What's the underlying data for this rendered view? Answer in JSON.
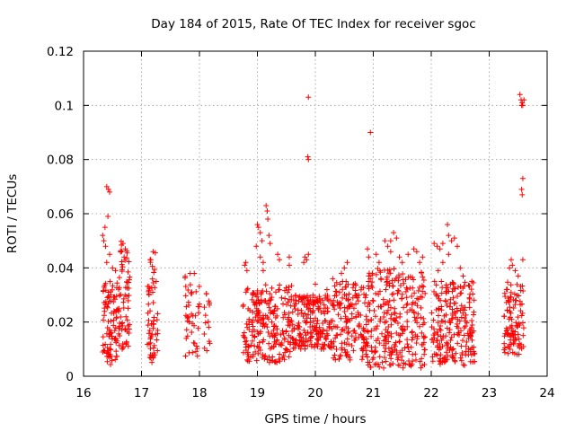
{
  "chart_data": {
    "type": "scatter",
    "title": "Day 184 of 2015, Rate Of TEC Index for receiver sgoc",
    "xlabel": "GPS time / hours",
    "ylabel": "ROTI / TECUs",
    "xlim": [
      16,
      24
    ],
    "ylim": [
      0,
      0.12
    ],
    "x_ticks": [
      "16",
      "17",
      "18",
      "19",
      "20",
      "21",
      "22",
      "23",
      "24"
    ],
    "y_ticks": [
      "0",
      "0.02",
      "0.04",
      "0.06",
      "0.08",
      "0.1",
      "0.12"
    ],
    "grid": true,
    "marker": "+",
    "color": "#ff0000",
    "series": [
      {
        "name": "ROTI",
        "clusters": [
          {
            "x_range": [
              16.33,
              16.58
            ],
            "y_range": [
              0.004,
              0.035
            ],
            "count": 90
          },
          {
            "x_range": [
              16.6,
              16.8
            ],
            "y_range": [
              0.01,
              0.05
            ],
            "count": 70
          },
          {
            "x_range": [
              17.1,
              17.28
            ],
            "y_range": [
              0.005,
              0.046
            ],
            "count": 60
          },
          {
            "x_range": [
              17.75,
              18.0
            ],
            "y_range": [
              0.007,
              0.038
            ],
            "count": 45
          },
          {
            "x_range": [
              18.05,
              18.18
            ],
            "y_range": [
              0.008,
              0.033
            ],
            "count": 15
          },
          {
            "x_range": [
              18.75,
              19.6
            ],
            "y_range": [
              0.005,
              0.034
            ],
            "count": 230
          },
          {
            "x_range": [
              19.6,
              20.3
            ],
            "y_range": [
              0.01,
              0.03
            ],
            "count": 210
          },
          {
            "x_range": [
              20.3,
              20.9
            ],
            "y_range": [
              0.006,
              0.035
            ],
            "count": 160
          },
          {
            "x_range": [
              20.9,
              21.9
            ],
            "y_range": [
              0.003,
              0.04
            ],
            "count": 280
          },
          {
            "x_range": [
              22.0,
              22.75
            ],
            "y_range": [
              0.004,
              0.035
            ],
            "count": 220
          },
          {
            "x_range": [
              23.25,
              23.6
            ],
            "y_range": [
              0.008,
              0.035
            ],
            "count": 100
          }
        ],
        "points": [
          {
            "x": 16.4,
            "y": 0.07
          },
          {
            "x": 16.43,
            "y": 0.069
          },
          {
            "x": 16.45,
            "y": 0.068
          },
          {
            "x": 16.42,
            "y": 0.059
          },
          {
            "x": 16.35,
            "y": 0.05
          },
          {
            "x": 16.38,
            "y": 0.048
          },
          {
            "x": 16.4,
            "y": 0.042
          },
          {
            "x": 16.5,
            "y": 0.04
          },
          {
            "x": 16.55,
            "y": 0.039
          },
          {
            "x": 16.37,
            "y": 0.055
          },
          {
            "x": 16.45,
            "y": 0.045
          },
          {
            "x": 16.33,
            "y": 0.052
          },
          {
            "x": 16.68,
            "y": 0.049
          },
          {
            "x": 16.72,
            "y": 0.047
          },
          {
            "x": 16.7,
            "y": 0.044
          },
          {
            "x": 17.2,
            "y": 0.046
          },
          {
            "x": 17.15,
            "y": 0.043
          },
          {
            "x": 18.8,
            "y": 0.042
          },
          {
            "x": 18.82,
            "y": 0.039
          },
          {
            "x": 18.78,
            "y": 0.041
          },
          {
            "x": 19.0,
            "y": 0.056
          },
          {
            "x": 19.02,
            "y": 0.055
          },
          {
            "x": 19.05,
            "y": 0.053
          },
          {
            "x": 19.08,
            "y": 0.05
          },
          {
            "x": 18.98,
            "y": 0.048
          },
          {
            "x": 19.05,
            "y": 0.044
          },
          {
            "x": 19.1,
            "y": 0.042
          },
          {
            "x": 19.15,
            "y": 0.063
          },
          {
            "x": 19.17,
            "y": 0.061
          },
          {
            "x": 19.18,
            "y": 0.058
          },
          {
            "x": 19.2,
            "y": 0.052
          },
          {
            "x": 19.22,
            "y": 0.049
          },
          {
            "x": 19.1,
            "y": 0.039
          },
          {
            "x": 19.35,
            "y": 0.045
          },
          {
            "x": 19.38,
            "y": 0.043
          },
          {
            "x": 19.55,
            "y": 0.044
          },
          {
            "x": 19.55,
            "y": 0.041
          },
          {
            "x": 19.87,
            "y": 0.081
          },
          {
            "x": 19.88,
            "y": 0.08
          },
          {
            "x": 19.88,
            "y": 0.103
          },
          {
            "x": 19.82,
            "y": 0.044
          },
          {
            "x": 19.85,
            "y": 0.043
          },
          {
            "x": 19.8,
            "y": 0.042
          },
          {
            "x": 19.88,
            "y": 0.045
          },
          {
            "x": 20.0,
            "y": 0.034
          },
          {
            "x": 20.2,
            "y": 0.032
          },
          {
            "x": 20.3,
            "y": 0.036
          },
          {
            "x": 20.45,
            "y": 0.038
          },
          {
            "x": 20.5,
            "y": 0.04
          },
          {
            "x": 20.55,
            "y": 0.042
          },
          {
            "x": 20.95,
            "y": 0.09
          },
          {
            "x": 20.9,
            "y": 0.047
          },
          {
            "x": 20.92,
            "y": 0.044
          },
          {
            "x": 21.05,
            "y": 0.045
          },
          {
            "x": 21.1,
            "y": 0.042
          },
          {
            "x": 21.2,
            "y": 0.05
          },
          {
            "x": 21.25,
            "y": 0.048
          },
          {
            "x": 21.3,
            "y": 0.05
          },
          {
            "x": 21.3,
            "y": 0.046
          },
          {
            "x": 21.35,
            "y": 0.053
          },
          {
            "x": 21.4,
            "y": 0.051
          },
          {
            "x": 21.45,
            "y": 0.044
          },
          {
            "x": 21.5,
            "y": 0.042
          },
          {
            "x": 21.6,
            "y": 0.045
          },
          {
            "x": 21.7,
            "y": 0.047
          },
          {
            "x": 21.75,
            "y": 0.046
          },
          {
            "x": 21.8,
            "y": 0.042
          },
          {
            "x": 21.85,
            "y": 0.044
          },
          {
            "x": 22.05,
            "y": 0.049
          },
          {
            "x": 22.1,
            "y": 0.048
          },
          {
            "x": 22.15,
            "y": 0.047
          },
          {
            "x": 22.2,
            "y": 0.049
          },
          {
            "x": 22.28,
            "y": 0.056
          },
          {
            "x": 22.3,
            "y": 0.052
          },
          {
            "x": 22.35,
            "y": 0.05
          },
          {
            "x": 22.4,
            "y": 0.051
          },
          {
            "x": 22.45,
            "y": 0.048
          },
          {
            "x": 22.3,
            "y": 0.045
          },
          {
            "x": 22.2,
            "y": 0.042
          },
          {
            "x": 22.12,
            "y": 0.039
          },
          {
            "x": 22.5,
            "y": 0.04
          },
          {
            "x": 22.55,
            "y": 0.037
          },
          {
            "x": 22.7,
            "y": 0.035
          },
          {
            "x": 23.35,
            "y": 0.04
          },
          {
            "x": 23.38,
            "y": 0.043
          },
          {
            "x": 23.4,
            "y": 0.041
          },
          {
            "x": 23.45,
            "y": 0.039
          },
          {
            "x": 23.5,
            "y": 0.037
          },
          {
            "x": 23.53,
            "y": 0.104
          },
          {
            "x": 23.55,
            "y": 0.102
          },
          {
            "x": 23.57,
            "y": 0.101
          },
          {
            "x": 23.58,
            "y": 0.1
          },
          {
            "x": 23.6,
            "y": 0.102
          },
          {
            "x": 23.56,
            "y": 0.1
          },
          {
            "x": 23.58,
            "y": 0.073
          },
          {
            "x": 23.56,
            "y": 0.069
          },
          {
            "x": 23.57,
            "y": 0.067
          },
          {
            "x": 23.58,
            "y": 0.043
          }
        ]
      }
    ]
  }
}
